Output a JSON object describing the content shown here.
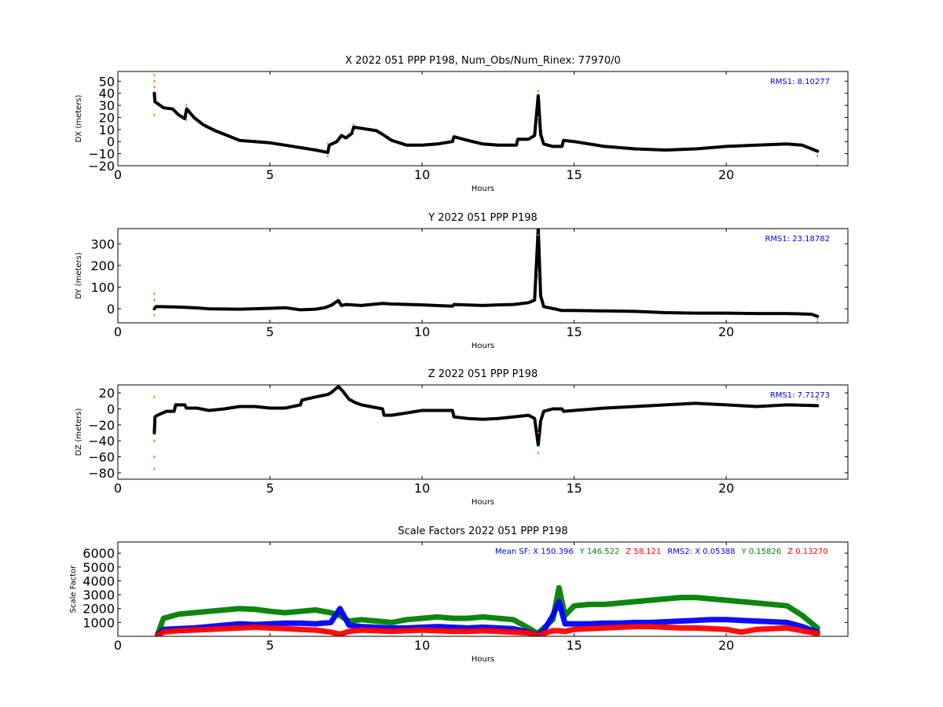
{
  "chart_data": [
    {
      "type": "scatter",
      "title": "X 2022 051 PPP  P198, Num_Obs/Num_Rinex: 77970/0",
      "xlabel": "Hours",
      "ylabel": "DX (meters)",
      "xlim": [
        0,
        24
      ],
      "ylim": [
        -20,
        58
      ],
      "xticks": [
        0,
        5,
        10,
        15,
        20
      ],
      "yticks": [
        -20,
        -10,
        0,
        10,
        20,
        30,
        40,
        50
      ],
      "annotation": "RMS1:  8.10277",
      "annotation_color": "#0000ff",
      "grid": false,
      "series": [
        {
          "color": "#000000",
          "x": [
            1.2,
            1.22,
            1.5,
            1.8,
            2.0,
            2.2,
            2.26,
            2.3,
            2.5,
            2.8,
            3.2,
            3.6,
            4.0,
            4.5,
            5.0,
            5.5,
            6.0,
            6.5,
            6.9,
            6.95,
            7.2,
            7.35,
            7.5,
            7.7,
            7.75,
            8.0,
            8.5,
            8.7,
            9.0,
            9.5,
            10.0,
            10.5,
            11.0,
            11.05,
            11.5,
            12.0,
            12.5,
            13.1,
            13.15,
            13.5,
            13.7,
            13.82,
            13.9,
            14.0,
            14.3,
            14.6,
            14.65,
            15.0,
            16.0,
            17.0,
            18.0,
            19.0,
            20.0,
            21.0,
            22.0,
            22.5,
            23.0
          ],
          "y": [
            40,
            33,
            28,
            27,
            22,
            19,
            27,
            26,
            20,
            14,
            9,
            5,
            1,
            0,
            -1,
            -3,
            -5,
            -7,
            -9,
            -3,
            0,
            5,
            3,
            7,
            12,
            11,
            9,
            6,
            1,
            -3,
            -3,
            -2,
            0,
            4,
            1,
            -2,
            -3,
            -3,
            2,
            2,
            5,
            38,
            6,
            -2,
            -4,
            -4,
            1,
            0,
            -4,
            -6,
            -7,
            -6,
            -4,
            -3,
            -2,
            -3,
            -8
          ]
        },
        {
          "color": "#ff6600",
          "x": [
            1.2,
            1.2,
            1.2,
            1.2,
            2.25,
            2.25,
            6.9,
            6.9,
            7.75,
            7.75,
            13.82,
            13.82,
            23.0,
            23.0
          ],
          "y": [
            55,
            50,
            45,
            22,
            30,
            18,
            -2,
            -12,
            14,
            8,
            42,
            20,
            -12,
            -20
          ]
        }
      ]
    },
    {
      "type": "scatter",
      "title": "Y 2022 051 PPP  P198",
      "xlabel": "Hours",
      "ylabel": "DY (meters)",
      "xlim": [
        0,
        24
      ],
      "ylim": [
        -65,
        370
      ],
      "xticks": [
        0,
        5,
        10,
        15,
        20
      ],
      "yticks": [
        0,
        100,
        200,
        300
      ],
      "annotation": "RMS1: 23.18782",
      "annotation_color": "#0000ff",
      "grid": false,
      "series": [
        {
          "color": "#000000",
          "x": [
            1.2,
            1.25,
            2.0,
            2.5,
            3.0,
            4.0,
            5.0,
            5.5,
            6.0,
            6.5,
            6.8,
            7.0,
            7.25,
            7.35,
            7.5,
            8.0,
            8.7,
            9.0,
            10.0,
            11.0,
            11.05,
            12.0,
            12.5,
            13.0,
            13.5,
            13.7,
            13.82,
            13.9,
            14.0,
            14.5,
            14.6,
            15.0,
            16.0,
            17.0,
            18.0,
            19.0,
            20.0,
            21.0,
            22.0,
            22.8,
            23.0
          ],
          "y": [
            0,
            10,
            8,
            5,
            0,
            -2,
            2,
            5,
            -5,
            -2,
            5,
            15,
            38,
            15,
            20,
            15,
            25,
            22,
            18,
            12,
            20,
            15,
            18,
            20,
            28,
            40,
            370,
            60,
            10,
            -5,
            -8,
            -8,
            -10,
            -12,
            -18,
            -20,
            -20,
            -22,
            -22,
            -25,
            -35
          ]
        },
        {
          "color": "#ff6600",
          "x": [
            1.2,
            1.2,
            1.2,
            13.82,
            13.82,
            23.0,
            23.0
          ],
          "y": [
            70,
            40,
            -30,
            340,
            150,
            -45,
            -60
          ]
        }
      ]
    },
    {
      "type": "scatter",
      "title": "Z 2022 051 PPP  P198",
      "xlabel": "Hours",
      "ylabel": "DZ (meters)",
      "xlim": [
        0,
        24
      ],
      "ylim": [
        -88,
        30
      ],
      "xticks": [
        0,
        5,
        10,
        15,
        20
      ],
      "yticks": [
        -80,
        -60,
        -40,
        -20,
        0,
        20
      ],
      "annotation": "RMS1:  7.71273",
      "annotation_color": "#0000ff",
      "grid": false,
      "series": [
        {
          "color": "#000000",
          "x": [
            1.2,
            1.22,
            1.3,
            1.6,
            1.85,
            1.9,
            2.2,
            2.25,
            2.6,
            3.0,
            3.5,
            4.0,
            4.5,
            5.0,
            5.5,
            6.0,
            6.05,
            6.5,
            6.9,
            7.0,
            7.25,
            7.4,
            7.6,
            7.8,
            8.0,
            8.7,
            8.75,
            9.0,
            9.5,
            10.0,
            10.5,
            11.0,
            11.05,
            11.5,
            12.0,
            12.5,
            13.0,
            13.5,
            13.7,
            13.82,
            13.9,
            14.0,
            14.3,
            14.6,
            14.65,
            15.0,
            16.0,
            17.0,
            18.0,
            19.0,
            20.0,
            21.0,
            22.0,
            23.0
          ],
          "y": [
            -30,
            -10,
            -8,
            -3,
            -3,
            5,
            5,
            1,
            1,
            -2,
            0,
            3,
            3,
            1,
            1,
            5,
            11,
            15,
            18,
            20,
            28,
            22,
            12,
            8,
            5,
            0,
            -8,
            -8,
            -5,
            -2,
            -2,
            -2,
            -10,
            -12,
            -13,
            -12,
            -10,
            -8,
            -12,
            -45,
            -15,
            -3,
            0,
            0,
            -3,
            -2,
            1,
            3,
            5,
            7,
            5,
            3,
            5,
            4
          ]
        },
        {
          "color": "#ff6600",
          "x": [
            1.2,
            1.2,
            1.2,
            1.2,
            13.82,
            13.82,
            23.0
          ],
          "y": [
            15,
            -40,
            -60,
            -75,
            -55,
            -30,
            12
          ]
        }
      ]
    },
    {
      "type": "scatter",
      "title": "Scale Factors 2022 051 PPP  P198",
      "xlabel": "Hours",
      "ylabel": "Scale Factor",
      "xlim": [
        0,
        24
      ],
      "ylim": [
        0,
        6800
      ],
      "xticks": [
        0,
        5,
        10,
        15,
        20
      ],
      "yticks": [
        1000,
        2000,
        3000,
        4000,
        5000,
        6000
      ],
      "annotation_parts": [
        {
          "text": "Mean SF: X 150.396",
          "color": "#0000ff"
        },
        {
          "text": "Y 146.522",
          "color": "#008000"
        },
        {
          "text": "Z  58.121",
          "color": "#ff0000"
        },
        {
          "text": "RMS2: X  0.05388",
          "color": "#0000ff"
        },
        {
          "text": "Y  0.15826",
          "color": "#008000"
        },
        {
          "text": "Z  0.13270",
          "color": "#ff0000"
        }
      ],
      "grid": false,
      "series": [
        {
          "color": "#008000",
          "x": [
            1.3,
            1.5,
            2.0,
            2.5,
            3.0,
            3.5,
            4.0,
            4.5,
            5.0,
            5.5,
            6.0,
            6.5,
            7.0,
            7.3,
            7.6,
            8.0,
            8.5,
            9.0,
            9.5,
            10.0,
            10.5,
            11.0,
            11.5,
            12.0,
            12.5,
            13.0,
            13.5,
            13.8,
            14.0,
            14.3,
            14.5,
            14.7,
            15.0,
            15.5,
            16.0,
            16.5,
            17.0,
            17.5,
            18.0,
            18.5,
            19.0,
            19.5,
            20.0,
            20.5,
            21.0,
            21.5,
            22.0,
            22.5,
            23.0
          ],
          "y": [
            100,
            1300,
            1600,
            1700,
            1800,
            1900,
            2000,
            1950,
            1800,
            1700,
            1800,
            1900,
            1700,
            1500,
            1100,
            1200,
            1100,
            1000,
            1200,
            1300,
            1400,
            1300,
            1300,
            1400,
            1300,
            1200,
            600,
            200,
            600,
            1200,
            3500,
            1500,
            2200,
            2300,
            2300,
            2400,
            2500,
            2600,
            2700,
            2800,
            2800,
            2700,
            2600,
            2500,
            2400,
            2300,
            2200,
            1500,
            600
          ]
        },
        {
          "color": "#0000ff",
          "x": [
            1.3,
            1.5,
            2.0,
            2.5,
            3.0,
            3.5,
            4.0,
            4.5,
            5.0,
            5.5,
            6.0,
            6.5,
            7.0,
            7.3,
            7.6,
            8.0,
            8.5,
            9.0,
            9.5,
            10.0,
            10.5,
            11.0,
            11.5,
            12.0,
            12.5,
            13.0,
            13.5,
            13.8,
            14.0,
            14.3,
            14.5,
            14.7,
            15.0,
            15.5,
            16.0,
            16.5,
            17.0,
            17.5,
            18.0,
            18.5,
            19.0,
            19.5,
            20.0,
            20.5,
            21.0,
            21.5,
            22.0,
            22.5,
            23.0
          ],
          "y": [
            100,
            500,
            550,
            600,
            700,
            800,
            900,
            850,
            900,
            950,
            950,
            900,
            1000,
            2000,
            800,
            700,
            650,
            600,
            600,
            650,
            700,
            650,
            600,
            650,
            600,
            550,
            300,
            100,
            400,
            1500,
            2500,
            900,
            900,
            900,
            950,
            950,
            1000,
            1000,
            1050,
            1100,
            1150,
            1200,
            1200,
            1150,
            1100,
            1050,
            1000,
            700,
            300
          ]
        },
        {
          "color": "#ff0000",
          "x": [
            1.3,
            1.5,
            2.0,
            2.5,
            3.0,
            3.5,
            4.0,
            4.5,
            5.0,
            5.5,
            6.0,
            6.5,
            7.0,
            7.3,
            7.6,
            8.0,
            8.5,
            9.0,
            9.5,
            10.0,
            10.5,
            11.0,
            11.5,
            12.0,
            12.5,
            13.0,
            13.5,
            13.8,
            14.0,
            14.3,
            14.5,
            14.7,
            15.0,
            15.5,
            16.0,
            16.5,
            17.0,
            17.5,
            18.0,
            18.5,
            19.0,
            19.5,
            20.0,
            20.5,
            21.0,
            21.5,
            22.0,
            22.5,
            23.0
          ],
          "y": [
            50,
            300,
            400,
            450,
            500,
            550,
            600,
            650,
            600,
            550,
            500,
            450,
            300,
            150,
            350,
            450,
            400,
            350,
            400,
            450,
            400,
            350,
            350,
            400,
            350,
            300,
            250,
            50,
            200,
            400,
            400,
            350,
            500,
            550,
            600,
            650,
            700,
            700,
            650,
            600,
            600,
            550,
            500,
            300,
            500,
            550,
            600,
            400,
            200
          ]
        }
      ]
    }
  ]
}
